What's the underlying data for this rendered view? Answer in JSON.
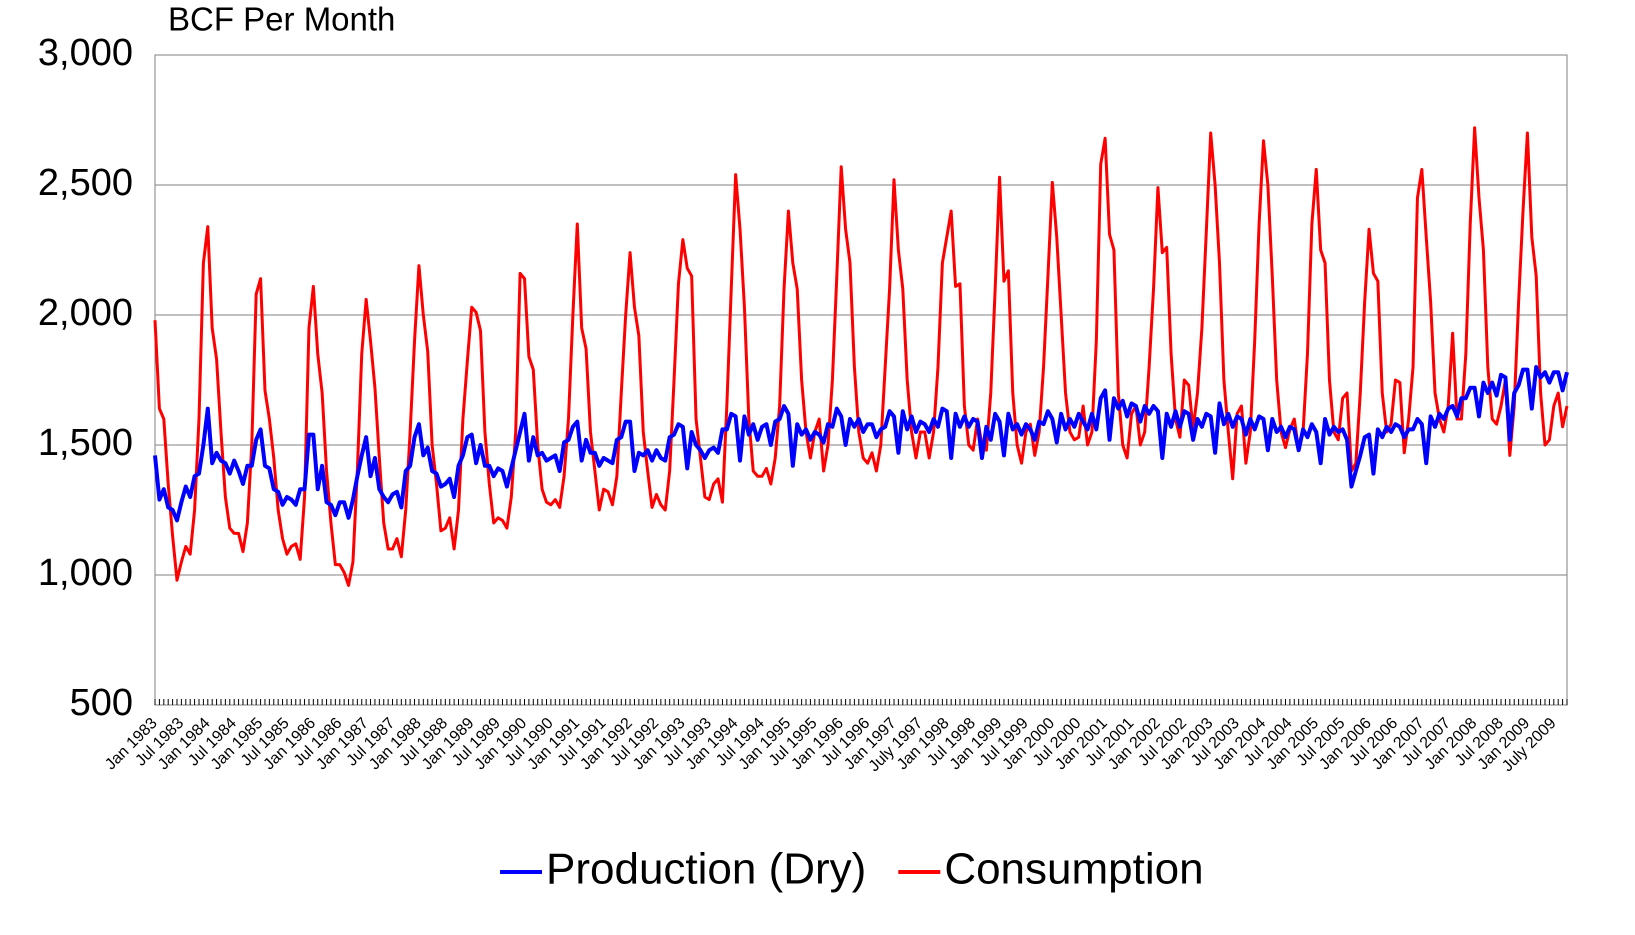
{
  "chart_data": {
    "type": "line",
    "title": "BCF Per Month",
    "categories": [
      "Jan 1983",
      null,
      null,
      null,
      null,
      null,
      "Jul 1983",
      null,
      null,
      null,
      null,
      null,
      "Jan 1984",
      null,
      null,
      null,
      null,
      null,
      "Jul 1984",
      null,
      null,
      null,
      null,
      null,
      "Jan 1985",
      null,
      null,
      null,
      null,
      null,
      "Jul 1985",
      null,
      null,
      null,
      null,
      null,
      "Jan 1986",
      null,
      null,
      null,
      null,
      null,
      "Jul 1986",
      null,
      null,
      null,
      null,
      null,
      "Jan 1987",
      null,
      null,
      null,
      null,
      null,
      "Jul 1987",
      null,
      null,
      null,
      null,
      null,
      "Jan 1988",
      null,
      null,
      null,
      null,
      null,
      "Jul 1988",
      null,
      null,
      null,
      null,
      null,
      "Jan 1989",
      null,
      null,
      null,
      null,
      null,
      "Jul 1989",
      null,
      null,
      null,
      null,
      null,
      "Jan 1990",
      null,
      null,
      null,
      null,
      null,
      "Jul 1990",
      null,
      null,
      null,
      null,
      null,
      "Jan 1991",
      null,
      null,
      null,
      null,
      null,
      "Jul 1991",
      null,
      null,
      null,
      null,
      null,
      "Jan 1992",
      null,
      null,
      null,
      null,
      null,
      "Jul 1992",
      null,
      null,
      null,
      null,
      null,
      "Jan 1993",
      null,
      null,
      null,
      null,
      null,
      "Jul 1993",
      null,
      null,
      null,
      null,
      null,
      "Jan 1994",
      null,
      null,
      null,
      null,
      null,
      "Jul 1994",
      null,
      null,
      null,
      null,
      null,
      "Jan 1995",
      null,
      null,
      null,
      null,
      null,
      "Jul 1995",
      null,
      null,
      null,
      null,
      null,
      "Jan 1996",
      null,
      null,
      null,
      null,
      null,
      "Jul 1996",
      null,
      null,
      null,
      null,
      null,
      "Jan 1997",
      null,
      null,
      null,
      null,
      null,
      "July 1997",
      null,
      null,
      null,
      null,
      null,
      "Jan 1998",
      null,
      null,
      null,
      null,
      null,
      "Jul 1998",
      null,
      null,
      null,
      null,
      null,
      "Jan 1999",
      null,
      null,
      null,
      null,
      null,
      "Jul 1999",
      null,
      null,
      null,
      null,
      null,
      "Jan 2000",
      null,
      null,
      null,
      null,
      null,
      "Jul 2000",
      null,
      null,
      null,
      null,
      null,
      "Jan 2001",
      null,
      null,
      null,
      null,
      null,
      "Jul 2001",
      null,
      null,
      null,
      null,
      null,
      "Jan 2002",
      null,
      null,
      null,
      null,
      null,
      "Jul 2002",
      null,
      null,
      null,
      null,
      null,
      "Jan 2003",
      null,
      null,
      null,
      null,
      null,
      "Jul 2003",
      null,
      null,
      null,
      null,
      null,
      "Jan 2004",
      null,
      null,
      null,
      null,
      null,
      "Jul 2004",
      null,
      null,
      null,
      null,
      null,
      "Jan 2005",
      null,
      null,
      null,
      null,
      null,
      "Jul 2005",
      null,
      null,
      null,
      null,
      null,
      "Jan 2006",
      null,
      null,
      null,
      null,
      null,
      "Jul 2006",
      null,
      null,
      null,
      null,
      null,
      "Jan 2007",
      null,
      null,
      null,
      null,
      null,
      "Jul 2007",
      null,
      null,
      null,
      null,
      null,
      "Jan 2008",
      null,
      null,
      null,
      null,
      null,
      "Jul 2008",
      null,
      null,
      null,
      null,
      null,
      "Jan 2009",
      null,
      null,
      null,
      null,
      null,
      "July 2009",
      null,
      null,
      null
    ],
    "series": [
      {
        "name": "Production (Dry)",
        "color": "#0000ff",
        "values": [
          1460,
          1290,
          1330,
          1260,
          1250,
          1210,
          1280,
          1340,
          1300,
          1380,
          1390,
          1500,
          1640,
          1430,
          1470,
          1440,
          1430,
          1390,
          1440,
          1400,
          1350,
          1420,
          1420,
          1520,
          1560,
          1420,
          1410,
          1330,
          1320,
          1270,
          1300,
          1290,
          1270,
          1330,
          1330,
          1540,
          1540,
          1330,
          1420,
          1280,
          1270,
          1230,
          1280,
          1280,
          1220,
          1290,
          1380,
          1460,
          1530,
          1380,
          1450,
          1330,
          1300,
          1280,
          1310,
          1320,
          1260,
          1400,
          1420,
          1530,
          1580,
          1460,
          1490,
          1400,
          1390,
          1340,
          1350,
          1370,
          1300,
          1420,
          1460,
          1530,
          1540,
          1430,
          1500,
          1420,
          1420,
          1380,
          1410,
          1400,
          1340,
          1410,
          1480,
          1550,
          1620,
          1440,
          1530,
          1460,
          1470,
          1440,
          1450,
          1460,
          1400,
          1510,
          1520,
          1570,
          1590,
          1440,
          1520,
          1470,
          1470,
          1420,
          1450,
          1440,
          1430,
          1520,
          1530,
          1590,
          1590,
          1400,
          1470,
          1460,
          1480,
          1440,
          1480,
          1450,
          1440,
          1530,
          1540,
          1580,
          1570,
          1410,
          1550,
          1500,
          1480,
          1450,
          1480,
          1490,
          1470,
          1560,
          1560,
          1620,
          1610,
          1440,
          1610,
          1540,
          1580,
          1520,
          1570,
          1580,
          1500,
          1590,
          1600,
          1650,
          1620,
          1420,
          1580,
          1540,
          1560,
          1520,
          1550,
          1540,
          1510,
          1580,
          1570,
          1640,
          1610,
          1500,
          1600,
          1570,
          1600,
          1550,
          1580,
          1580,
          1530,
          1560,
          1570,
          1630,
          1610,
          1470,
          1630,
          1560,
          1610,
          1550,
          1590,
          1580,
          1550,
          1600,
          1570,
          1640,
          1630,
          1450,
          1620,
          1570,
          1610,
          1570,
          1600,
          1590,
          1450,
          1570,
          1520,
          1620,
          1590,
          1460,
          1620,
          1560,
          1580,
          1540,
          1580,
          1560,
          1520,
          1590,
          1580,
          1630,
          1600,
          1510,
          1620,
          1560,
          1600,
          1570,
          1620,
          1590,
          1560,
          1620,
          1560,
          1680,
          1710,
          1520,
          1680,
          1640,
          1670,
          1610,
          1660,
          1650,
          1590,
          1650,
          1620,
          1650,
          1630,
          1450,
          1620,
          1570,
          1630,
          1570,
          1630,
          1620,
          1520,
          1600,
          1570,
          1620,
          1610,
          1470,
          1660,
          1580,
          1620,
          1570,
          1610,
          1600,
          1540,
          1600,
          1560,
          1610,
          1600,
          1480,
          1600,
          1550,
          1570,
          1530,
          1570,
          1560,
          1480,
          1560,
          1530,
          1580,
          1550,
          1430,
          1600,
          1540,
          1570,
          1550,
          1560,
          1520,
          1340,
          1400,
          1460,
          1530,
          1540,
          1390,
          1560,
          1530,
          1570,
          1550,
          1580,
          1570,
          1530,
          1560,
          1560,
          1600,
          1580,
          1430,
          1610,
          1570,
          1620,
          1600,
          1640,
          1650,
          1610,
          1680,
          1680,
          1720,
          1720,
          1610,
          1740,
          1700,
          1740,
          1690,
          1770,
          1760,
          1520,
          1700,
          1730,
          1790,
          1790,
          1640,
          1800,
          1760,
          1780,
          1740,
          1780,
          1780,
          1710,
          1780
        ]
      },
      {
        "name": "Consumption",
        "color": "#ff0000",
        "values": [
          1980,
          1640,
          1600,
          1350,
          1150,
          980,
          1050,
          1110,
          1080,
          1250,
          1600,
          2200,
          2340,
          1950,
          1830,
          1550,
          1300,
          1180,
          1160,
          1160,
          1090,
          1200,
          1500,
          2080,
          2140,
          1710,
          1600,
          1450,
          1250,
          1140,
          1080,
          1110,
          1120,
          1060,
          1300,
          1950,
          2110,
          1850,
          1700,
          1400,
          1200,
          1040,
          1040,
          1010,
          960,
          1050,
          1400,
          1850,
          2060,
          1900,
          1720,
          1450,
          1200,
          1100,
          1100,
          1140,
          1070,
          1250,
          1550,
          1900,
          2190,
          2000,
          1860,
          1500,
          1350,
          1170,
          1180,
          1220,
          1100,
          1250,
          1600,
          1820,
          2030,
          2010,
          1940,
          1550,
          1350,
          1200,
          1220,
          1210,
          1180,
          1300,
          1550,
          2160,
          2140,
          1840,
          1790,
          1500,
          1330,
          1280,
          1270,
          1290,
          1260,
          1380,
          1600,
          2000,
          2350,
          1950,
          1870,
          1550,
          1400,
          1250,
          1330,
          1320,
          1270,
          1380,
          1700,
          2000,
          2240,
          2030,
          1920,
          1550,
          1400,
          1260,
          1310,
          1270,
          1250,
          1400,
          1750,
          2120,
          2290,
          2180,
          2150,
          1600,
          1450,
          1300,
          1290,
          1350,
          1370,
          1280,
          1650,
          2100,
          2540,
          2330,
          2030,
          1600,
          1400,
          1380,
          1380,
          1410,
          1350,
          1450,
          1650,
          2100,
          2400,
          2200,
          2100,
          1750,
          1550,
          1450,
          1550,
          1600,
          1400,
          1500,
          1750,
          2150,
          2570,
          2330,
          2200,
          1800,
          1550,
          1450,
          1430,
          1470,
          1400,
          1500,
          1800,
          2100,
          2520,
          2250,
          2100,
          1750,
          1550,
          1450,
          1550,
          1550,
          1450,
          1550,
          1800,
          2200,
          2300,
          2400,
          2110,
          2120,
          1650,
          1500,
          1480,
          1600,
          1500,
          1480,
          1700,
          2100,
          2530,
          2130,
          2170,
          1700,
          1500,
          1430,
          1550,
          1580,
          1460,
          1550,
          1800,
          2150,
          2510,
          2300,
          2000,
          1700,
          1550,
          1520,
          1530,
          1650,
          1500,
          1550,
          1900,
          2580,
          2680,
          2310,
          2250,
          1700,
          1500,
          1450,
          1620,
          1650,
          1500,
          1550,
          1800,
          2100,
          2490,
          2240,
          2260,
          1850,
          1600,
          1530,
          1750,
          1730,
          1560,
          1700,
          1950,
          2320,
          2700,
          2500,
          2200,
          1750,
          1550,
          1370,
          1620,
          1650,
          1430,
          1550,
          1900,
          2350,
          2670,
          2500,
          2150,
          1750,
          1550,
          1490,
          1560,
          1600,
          1480,
          1550,
          1850,
          2350,
          2560,
          2250,
          2200,
          1750,
          1550,
          1520,
          1680,
          1700,
          1400,
          1430,
          1700,
          2050,
          2330,
          2160,
          2130,
          1700,
          1550,
          1580,
          1750,
          1740,
          1470,
          1600,
          1800,
          2450,
          2560,
          2300,
          2050,
          1700,
          1600,
          1550,
          1650,
          1930,
          1600,
          1600,
          1850,
          2350,
          2720,
          2450,
          2250,
          1800,
          1600,
          1580,
          1650,
          1750,
          1460,
          1650,
          2050,
          2400,
          2700,
          2300,
          2150,
          1700,
          1500,
          1520,
          1650,
          1700,
          1570,
          1650
        ]
      }
    ],
    "ylim": [
      500,
      3000
    ],
    "yticks": [
      500,
      {
        "value": 1000,
        "label": "1,000"
      },
      {
        "value": 1500,
        "label": "1,500"
      },
      {
        "value": 2000,
        "label": "2,000"
      },
      {
        "value": 2500,
        "label": "2,500"
      },
      {
        "value": 3000,
        "label": "3,000"
      }
    ],
    "grid": true,
    "legend": "bottom"
  }
}
